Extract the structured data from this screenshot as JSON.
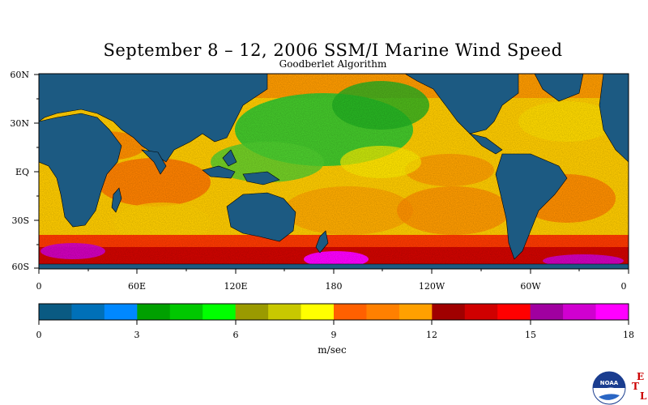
{
  "title": "September 8 – 12, 2006 SSM/I Marine Wind Speed",
  "subtitle": "Goodberlet Algorithm",
  "map": {
    "lat_labels": [
      "60N",
      "30N",
      "EQ",
      "30S",
      "60S"
    ],
    "lon_labels": [
      "0",
      "60E",
      "120E",
      "180",
      "120W",
      "60W",
      "0"
    ],
    "land_color": "#1c5a82",
    "ocean_dominant_colors": [
      "#ffff00",
      "#ff8800",
      "#22cc22",
      "#cc0000",
      "#ff00ff"
    ]
  },
  "colorbar": {
    "tick_labels": [
      "0",
      "3",
      "6",
      "9",
      "12",
      "15",
      "18"
    ],
    "units": "m/sec",
    "colors": [
      "#0a5a82",
      "#0070b8",
      "#0088ff",
      "#00a000",
      "#00c800",
      "#00ff00",
      "#9a9a00",
      "#c8c800",
      "#ffff00",
      "#ff6000",
      "#ff8000",
      "#ffa000",
      "#a00000",
      "#d00000",
      "#ff0000",
      "#a000a0",
      "#d000d0",
      "#ff00ff"
    ]
  },
  "logo": {
    "text": "NOAA",
    "side_letters": [
      "E",
      "T",
      "L"
    ]
  }
}
